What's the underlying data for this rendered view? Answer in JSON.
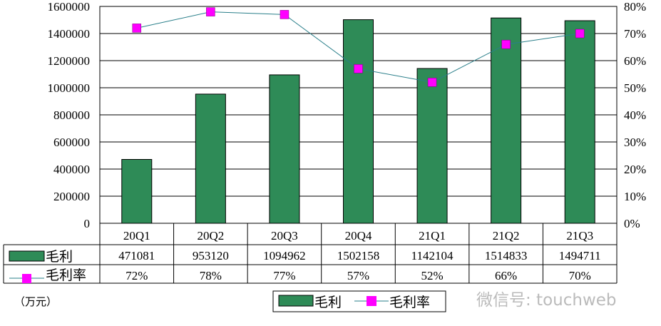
{
  "chart_data": {
    "type": "bar+line",
    "categories": [
      "20Q1",
      "20Q2",
      "20Q3",
      "20Q4",
      "21Q1",
      "21Q2",
      "21Q3"
    ],
    "series": [
      {
        "name": "毛利",
        "type": "bar",
        "axis": "left",
        "color": "#2e8b57",
        "values": [
          471081,
          953120,
          1094962,
          1502158,
          1142104,
          1514833,
          1494711
        ]
      },
      {
        "name": "毛利率",
        "type": "line",
        "axis": "right",
        "color": "#ff00ff",
        "line_color": "#2a7f8a",
        "values": [
          72,
          78,
          77,
          57,
          52,
          66,
          70
        ],
        "labels": [
          "72%",
          "78%",
          "77%",
          "57%",
          "52%",
          "66%",
          "70%"
        ]
      }
    ],
    "y_left": {
      "range": [
        0,
        1600000
      ],
      "ticks": [
        "0",
        "200000",
        "400000",
        "600000",
        "800000",
        "1000000",
        "1200000",
        "1400000",
        "1600000"
      ]
    },
    "y_right": {
      "range": [
        0,
        80
      ],
      "ticks": [
        "0%",
        "10%",
        "20%",
        "30%",
        "40%",
        "50%",
        "60%",
        "70%",
        "80%"
      ]
    },
    "unit_note": "（万元）",
    "grid": true,
    "legend": "bottom",
    "data_table": true
  },
  "watermark": "微信号: touchweb"
}
